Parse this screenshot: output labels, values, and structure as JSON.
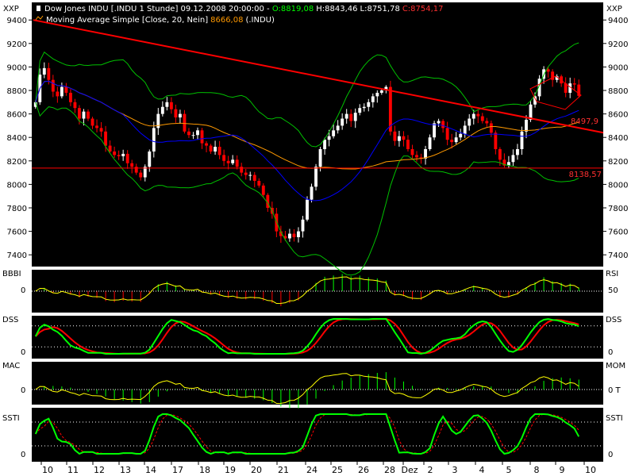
{
  "header": {
    "title_prefix": "Dow Jones INDU [.INDU  1 Stunde] 09.12.2008 20:00:00 - ",
    "open": "O:8819,08",
    "high": "H:8843,46",
    "low": "L:8751,78",
    "close": "C:8754,17",
    "ma_label": "Moving Average Simple [Close, 20, Nein]",
    "ma_value": "8666,08",
    "ma_suffix": "(.INDU)",
    "scale_left": "XXP",
    "scale_right": "XXP"
  },
  "colors": {
    "up": "#ffffff",
    "down": "#ff0000",
    "ma": "#0000ff",
    "bollinger": "#00c000",
    "ma_slow": "#ff9900",
    "trendline": "#ff0000",
    "green_bar": "#00ff00",
    "signal": "#ffff00"
  },
  "chart_data": [
    {
      "type": "candlestick",
      "ylim": [
        7300,
        9550
      ],
      "yticks": [
        7400,
        7600,
        7800,
        8000,
        8200,
        8400,
        8600,
        8800,
        9000,
        9200,
        9400
      ],
      "ytick_labels": [
        "7400",
        "7600",
        "7800",
        "8000",
        "8200",
        "8400",
        "8600",
        "8800",
        "9000",
        "9200",
        "9400"
      ],
      "x_labels": [
        "10",
        "11",
        "12",
        "13",
        "14",
        "17",
        "18",
        "19",
        "20",
        "21",
        "24",
        "25",
        "26",
        "28",
        "Dez",
        "2",
        "3",
        "4",
        "5",
        "8",
        "9",
        "10"
      ],
      "n": 220,
      "close": [
        8700,
        8935,
        8990,
        8890,
        8790,
        8750,
        8830,
        8780,
        8700,
        8650,
        8560,
        8620,
        8560,
        8500,
        8480,
        8450,
        8330,
        8280,
        8250,
        8240,
        8260,
        8180,
        8150,
        8100,
        8060,
        8150,
        8280,
        8480,
        8600,
        8660,
        8700,
        8640,
        8570,
        8600,
        8450,
        8420,
        8420,
        8460,
        8350,
        8330,
        8280,
        8320,
        8250,
        8200,
        8180,
        8210,
        8150,
        8100,
        8080,
        8080,
        8030,
        7990,
        7910,
        7800,
        7750,
        7600,
        7560,
        7540,
        7580,
        7550,
        7600,
        7700,
        7870,
        7980,
        8150,
        8300,
        8380,
        8410,
        8460,
        8500,
        8560,
        8600,
        8540,
        8610,
        8650,
        8660,
        8700,
        8750,
        8780,
        8800,
        8830,
        8450,
        8370,
        8410,
        8380,
        8300,
        8250,
        8230,
        8220,
        8300,
        8400,
        8520,
        8540,
        8480,
        8380,
        8360,
        8400,
        8430,
        8500,
        8560,
        8600,
        8580,
        8540,
        8520,
        8440,
        8300,
        8210,
        8160,
        8190,
        8250,
        8300,
        8450,
        8550,
        8680,
        8750,
        8900,
        8980,
        8960,
        8890,
        8920,
        8860,
        8780,
        8860,
        8850,
        8754
      ],
      "support_line": {
        "value": 8138.57,
        "label": "8138,57"
      },
      "trendline": {
        "label": "8497,9"
      }
    },
    {
      "type": "bar",
      "name": "BBBI",
      "left_labels": [
        "BBBI",
        "0"
      ],
      "right_labels": [
        "RSI",
        "50"
      ]
    },
    {
      "type": "line",
      "name": "DSS",
      "left_labels": [
        "DSS",
        "0"
      ],
      "right_labels": [
        "DSS",
        "0"
      ]
    },
    {
      "type": "bar",
      "name": "MAC",
      "left_labels": [
        "MAC",
        "0"
      ],
      "right_labels": [
        "MOM",
        "0 T"
      ]
    },
    {
      "type": "line",
      "name": "SSTI",
      "left_labels": [
        "SSTI",
        "0"
      ],
      "right_labels": [
        "SSTI",
        "0"
      ]
    }
  ]
}
